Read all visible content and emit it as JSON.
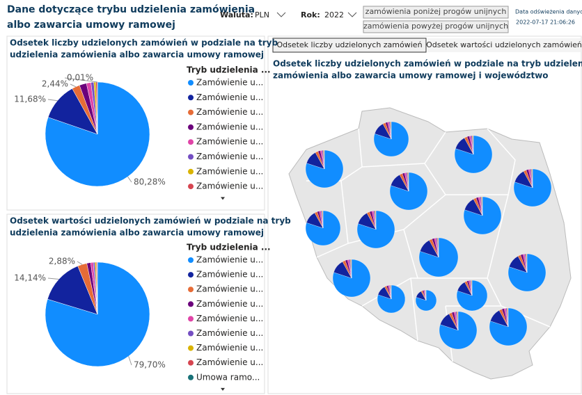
{
  "header": {
    "title": [
      "Dane dotyczące trybu udzielenia zamówienia",
      "albo zawarcia umowy ramowej"
    ]
  },
  "filters": {
    "currency_label": "Waluta:",
    "currency": "PLN",
    "year_label": "Rok:",
    "year": "2022"
  },
  "buttons": [
    "zamówienia poniżej progów unijnych",
    "zamówienia powyżej progów unijnych"
  ],
  "refresh": {
    "label": "Data odświeżenia danych",
    "date": "2022-07-17 21:06:26"
  },
  "tabs": [
    "Odsetek liczby udzielonych zamówień",
    "Odsetek wartości udzielonych zamówień"
  ],
  "map_title": [
    "Odsetek liczby udzielonych zamówień w podziale na tryb udzielenia",
    "zamówienia albo zawarcia umowy ramowej i województwo"
  ],
  "chart_data": [
    {
      "type": "pie",
      "title": [
        "Odsetek liczby udzielonych zamówień w podziale na tryb",
        "udzielenia zamówienia albo zawarcia umowy ramowej"
      ],
      "legend_title": "Tryb udzielenia ...",
      "categories": [
        "Zamówienie u...",
        "Zamówienie u...",
        "Zamówienie u...",
        "Zamówienie u...",
        "Zamówienie u...",
        "Zamówienie u...",
        "Zamówienie u...",
        "Zamówienie u...",
        null
      ],
      "values": [
        80.28,
        11.68,
        2.44,
        2.2,
        1.4,
        0.9,
        0.6,
        0.49,
        0.01
      ],
      "value_labels": [
        "80,28%",
        "11,68%",
        "2,44%",
        null,
        null,
        null,
        null,
        null,
        "0,01%"
      ],
      "colors": [
        "#118DFF",
        "#12239E",
        "#E66C37",
        "#6B007B",
        "#E044A7",
        "#744EC2",
        "#D9B300",
        "#D64550",
        "#197278"
      ]
    },
    {
      "type": "pie",
      "title": [
        "Odsetek wartości udzielonych zamówień w podziale na tryb",
        "udzielenia zamówienia albo zawarcia umowy ramowej"
      ],
      "legend_title": "Tryb udzielenia ...",
      "categories": [
        "Zamówienie u...",
        "Zamówienie u...",
        "Zamówienie u...",
        "Zamówienie u...",
        "Zamówienie u...",
        "Zamówienie u...",
        "Zamówienie u...",
        "Zamówienie u...",
        "Umowa ramo..."
      ],
      "values": [
        79.7,
        14.14,
        2.88,
        1.2,
        0.8,
        0.5,
        0.4,
        0.3,
        0.08
      ],
      "value_labels": [
        "79,70%",
        "14,14%",
        "2,88%",
        null,
        null,
        null,
        null,
        null,
        null
      ],
      "colors": [
        "#118DFF",
        "#12239E",
        "#E66C37",
        "#6B007B",
        "#E044A7",
        "#744EC2",
        "#D9B300",
        "#D64550",
        "#197278"
      ]
    }
  ]
}
